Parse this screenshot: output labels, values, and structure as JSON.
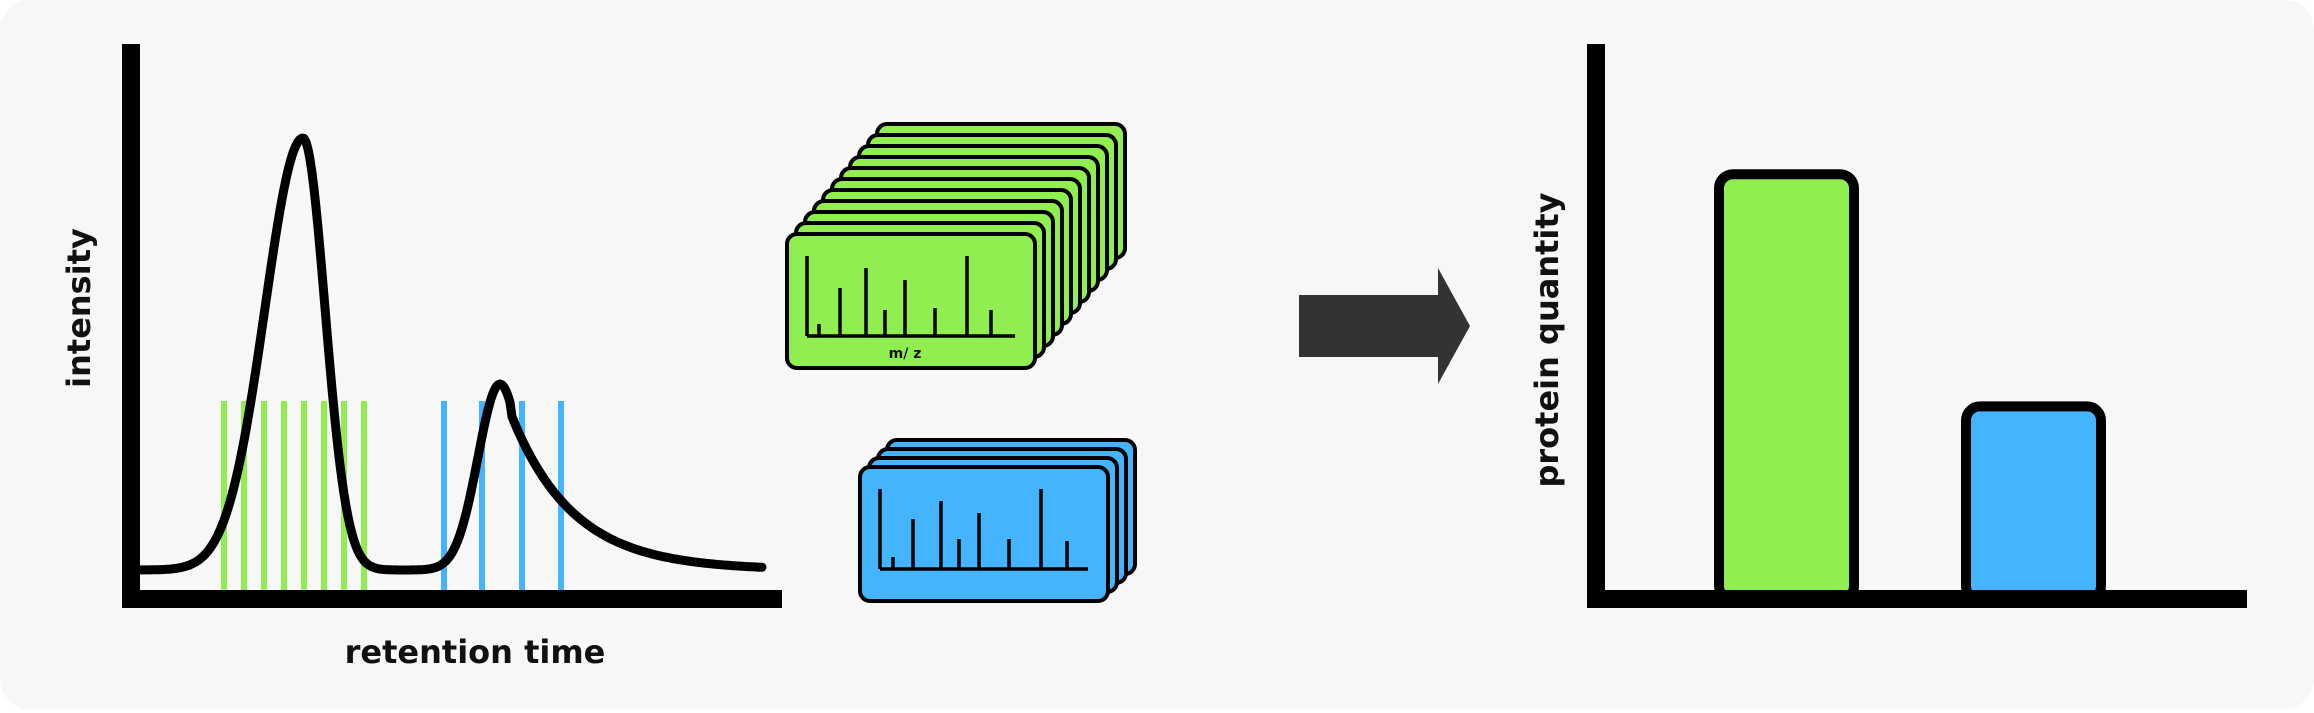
{
  "colors": {
    "background": "#f7f7f7",
    "ink": "#000000",
    "green": "#90ee50",
    "blue": "#44b4ff",
    "arrow": "#333333"
  },
  "chromatogram": {
    "y_label": "intensity",
    "x_label": "retention time"
  },
  "spectra": {
    "mz_label": "m/ z",
    "green_stack_count": 11,
    "blue_stack_count": 4
  },
  "quantity_chart": {
    "y_label": "protein quantity"
  },
  "chart_data": {
    "type": "bar",
    "categories": [
      "green",
      "blue"
    ],
    "values": [
      0.77,
      0.34
    ],
    "ylim": [
      0,
      1
    ],
    "ylabel": "protein quantity",
    "xlabel": ""
  }
}
